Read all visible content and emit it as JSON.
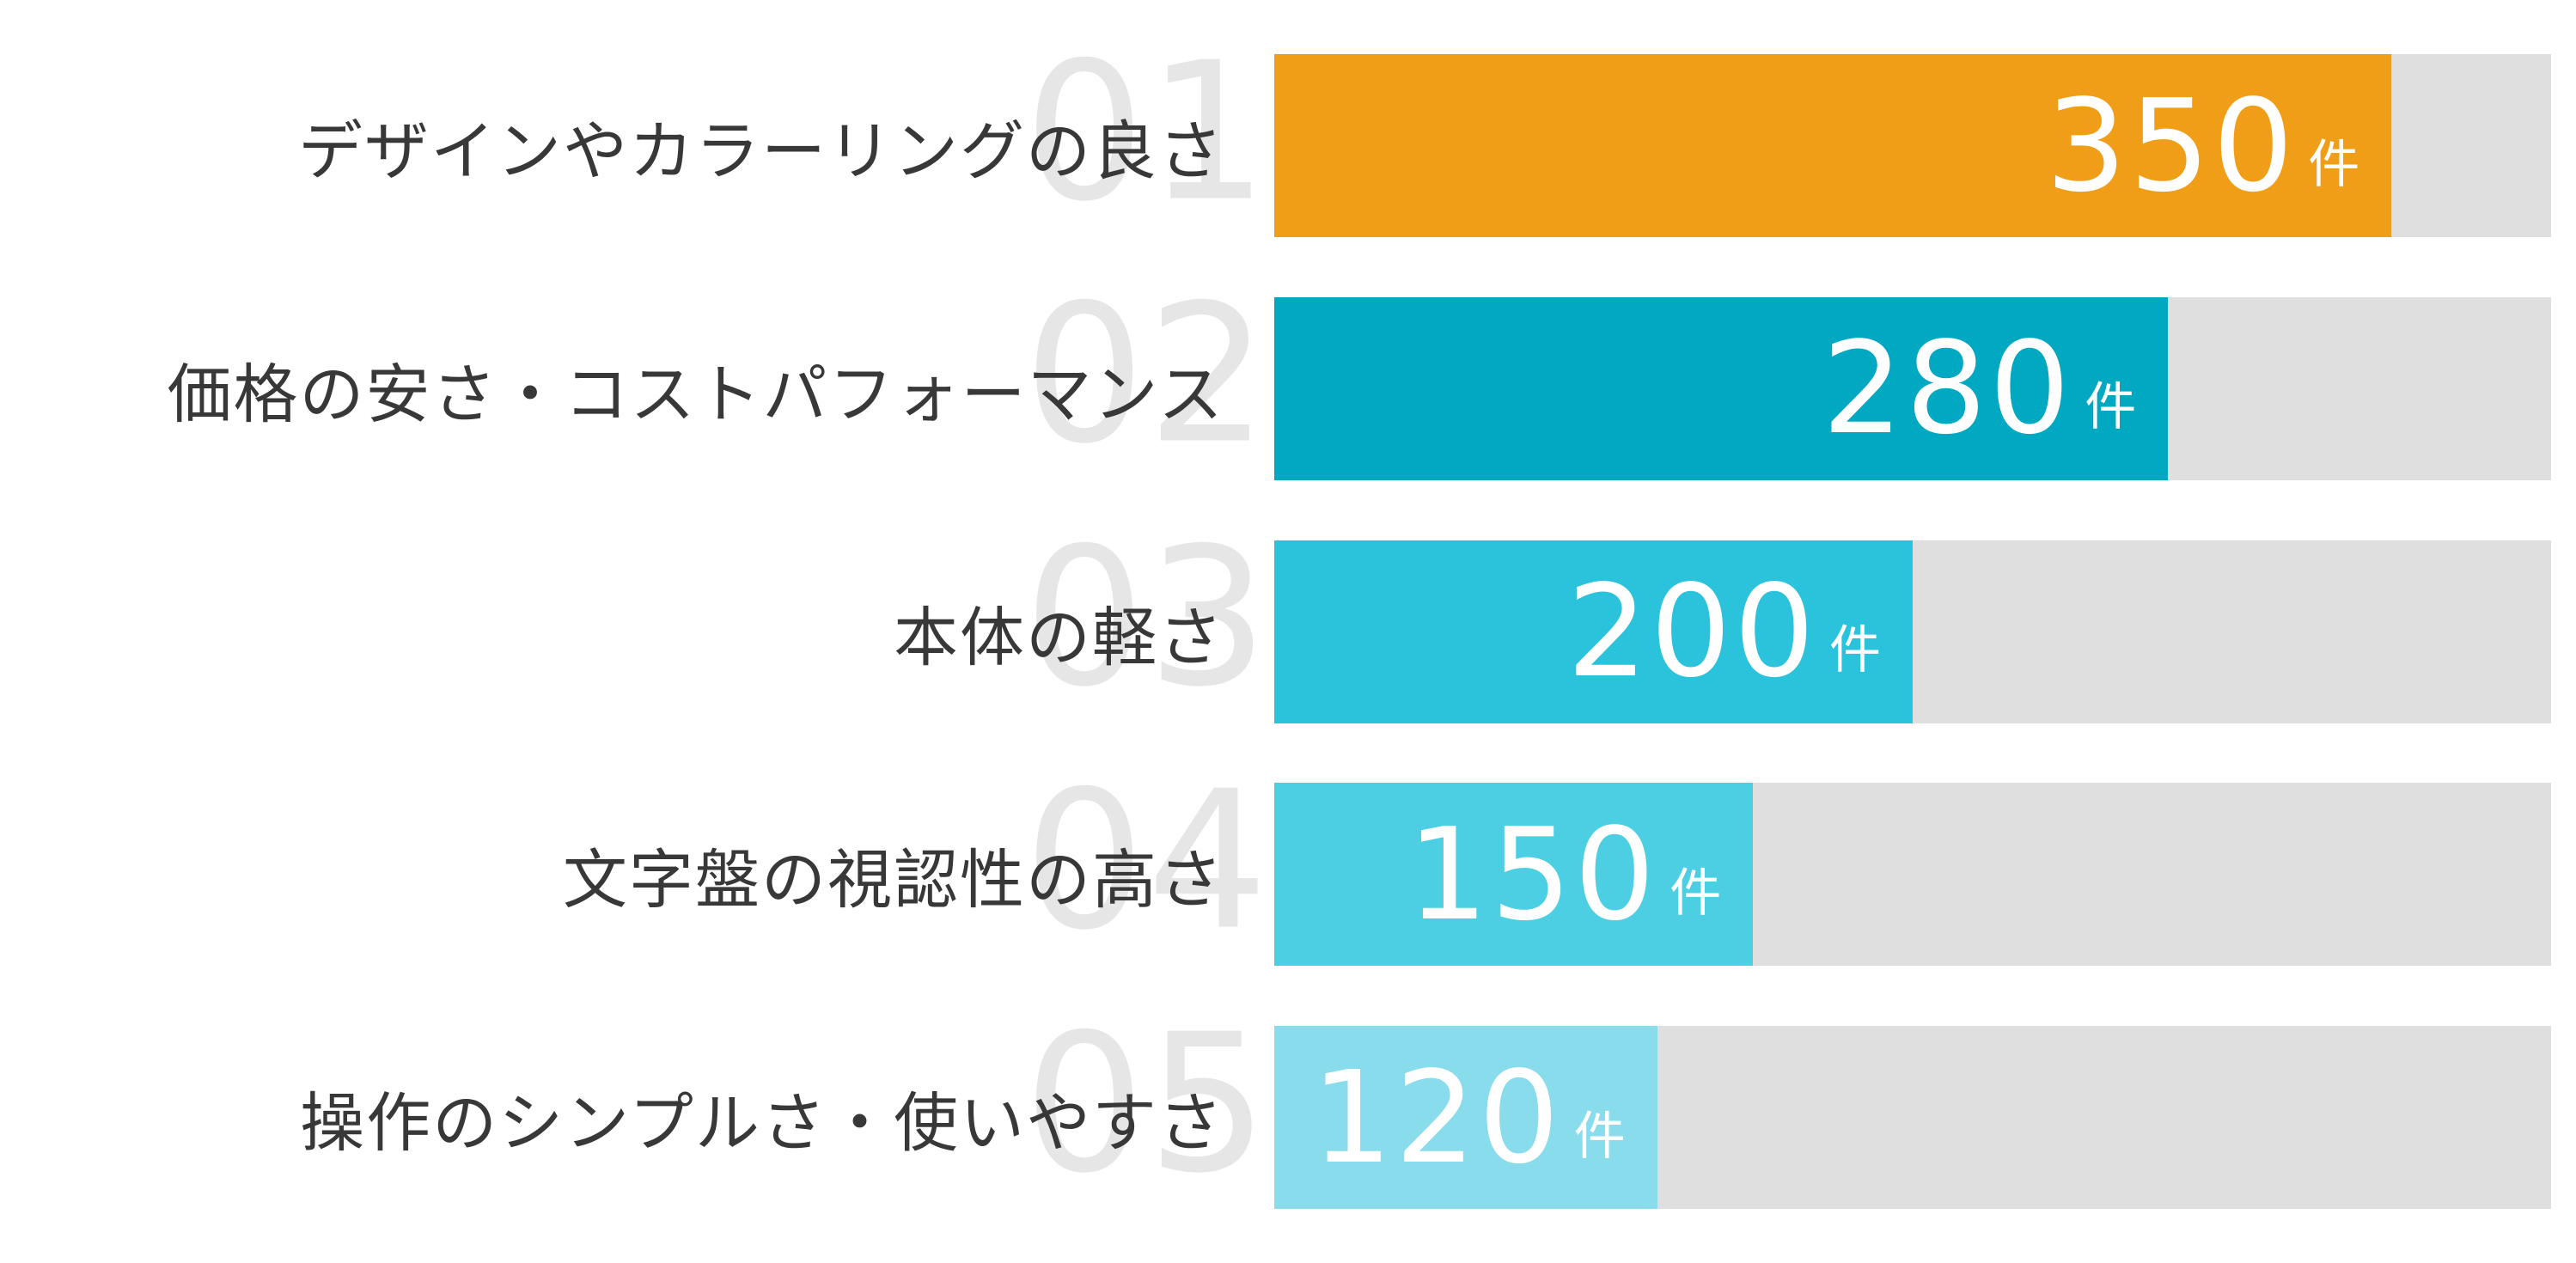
{
  "chart_data": {
    "type": "bar",
    "orientation": "horizontal",
    "title": "",
    "xlabel": "",
    "ylabel": "",
    "unit": "件",
    "axis_max": 400,
    "grid": false,
    "legend": false,
    "categories": [
      "デザインやカラーリングの良さ",
      "価格の安さ・コストパフォーマンス",
      "本体の軽さ",
      "文字盤の視認性の高さ",
      "操作のシンプルさ・使いやすさ"
    ],
    "values": [
      350,
      280,
      200,
      150,
      120
    ],
    "rank_labels": [
      "01",
      "02",
      "03",
      "04",
      "05"
    ],
    "colors": {
      "bars": [
        "#F09E18",
        "#00A8C2",
        "#2BC3DC",
        "#4CCFE2",
        "#89DCEC"
      ],
      "track": "#DFDFDF",
      "rank_number": "#E6E6E6",
      "category_label": "#383838",
      "value_text": "#FFFFFF",
      "background": "#FFFFFF"
    }
  },
  "rows": [
    {
      "rank": "01",
      "label": "デザインやカラーリングの良さ",
      "value": "350",
      "unit": "件",
      "color": "#F09E18",
      "width": "87.5%"
    },
    {
      "rank": "02",
      "label": "価格の安さ・コストパフォーマンス",
      "value": "280",
      "unit": "件",
      "color": "#00A8C2",
      "width": "70%"
    },
    {
      "rank": "03",
      "label": "本体の軽さ",
      "value": "200",
      "unit": "件",
      "color": "#2BC3DC",
      "width": "50%"
    },
    {
      "rank": "04",
      "label": "文字盤の視認性の高さ",
      "value": "150",
      "unit": "件",
      "color": "#4CCFE2",
      "width": "37.5%"
    },
    {
      "rank": "05",
      "label": "操作のシンプルさ・使いやすさ",
      "value": "120",
      "unit": "件",
      "color": "#89DCEC",
      "width": "30%"
    }
  ]
}
